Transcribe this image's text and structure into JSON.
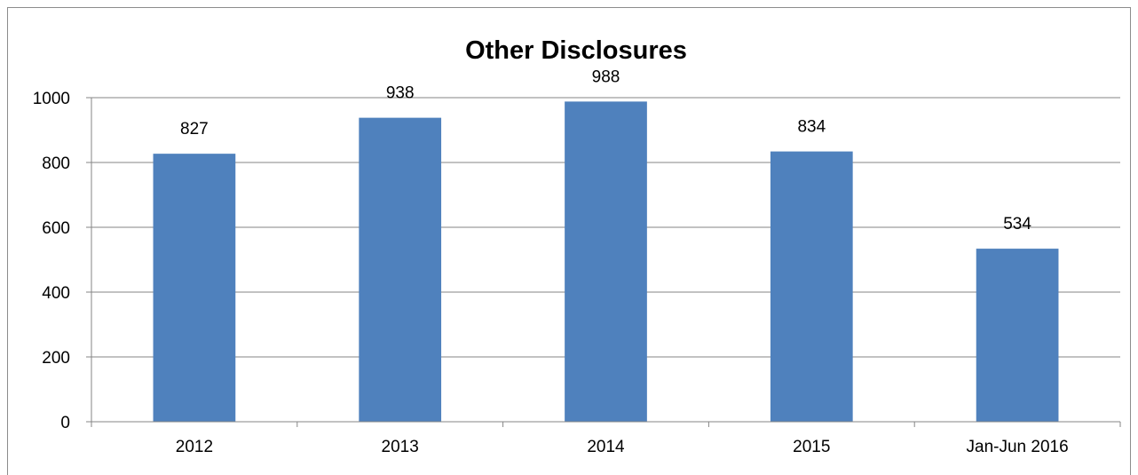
{
  "chart_data": {
    "type": "bar",
    "title": "Other Disclosures",
    "categories": [
      "2012",
      "2013",
      "2014",
      "2015",
      "Jan-Jun 2016"
    ],
    "values": [
      827,
      938,
      988,
      834,
      534
    ],
    "data_labels": [
      "827",
      "938",
      "988",
      "834",
      "534"
    ],
    "y_ticks": [
      "0",
      "200",
      "400",
      "600",
      "800",
      "1000"
    ],
    "ylim": [
      0,
      1000
    ],
    "grid": true,
    "legend": "none",
    "colors": {
      "bar": "#4F81BD",
      "grid": "#868686",
      "axis": "#868686"
    }
  }
}
